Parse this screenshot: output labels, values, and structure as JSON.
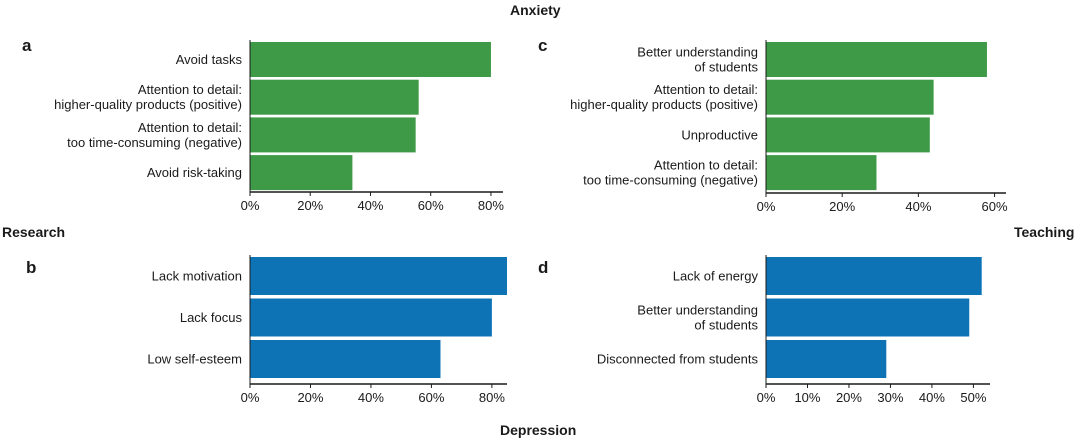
{
  "headings": {
    "top": "Anxiety",
    "bottom": "Depression",
    "left": "Research",
    "right": "Teaching"
  },
  "colors": {
    "anxiety": "#3f9a47",
    "depression": "#0d73b5",
    "axis": "#1a1a1a"
  },
  "chart_data": [
    {
      "panel": "a",
      "type": "bar",
      "orientation": "horizontal",
      "categories": [
        "Avoid tasks",
        "Attention to detail:\nhigher-quality products (positive)",
        "Attention to detail:\ntoo time-consuming (negative)",
        "Avoid risk-taking"
      ],
      "values": [
        80,
        56,
        55,
        34
      ],
      "xlim": [
        0,
        84
      ],
      "xticks": [
        0,
        20,
        40,
        60,
        80
      ],
      "tick_format": "percent",
      "color": "#3f9a47"
    },
    {
      "panel": "b",
      "type": "bar",
      "orientation": "horizontal",
      "categories": [
        "Lack motivation",
        "Lack focus",
        "Low self-esteem"
      ],
      "values": [
        85,
        80,
        63
      ],
      "xlim": [
        0,
        85
      ],
      "xticks": [
        0,
        20,
        40,
        60,
        80
      ],
      "tick_format": "percent",
      "color": "#0d73b5"
    },
    {
      "panel": "c",
      "type": "bar",
      "orientation": "horizontal",
      "categories": [
        "Better understanding\nof students",
        "Attention to detail:\nhigher-quality products (positive)",
        "Unproductive",
        "Attention to detail:\ntoo time-consuming (negative)"
      ],
      "values": [
        58,
        44,
        43,
        29
      ],
      "xlim": [
        0,
        63
      ],
      "xticks": [
        0,
        20,
        40,
        60
      ],
      "tick_format": "percent",
      "color": "#3f9a47"
    },
    {
      "panel": "d",
      "type": "bar",
      "orientation": "horizontal",
      "categories": [
        "Lack of energy",
        "Better understanding\nof students",
        "Disconnected from students"
      ],
      "values": [
        52,
        49,
        29
      ],
      "xlim": [
        0,
        54
      ],
      "xticks": [
        0,
        10,
        20,
        30,
        40,
        50
      ],
      "tick_format": "percent",
      "color": "#0d73b5"
    }
  ]
}
